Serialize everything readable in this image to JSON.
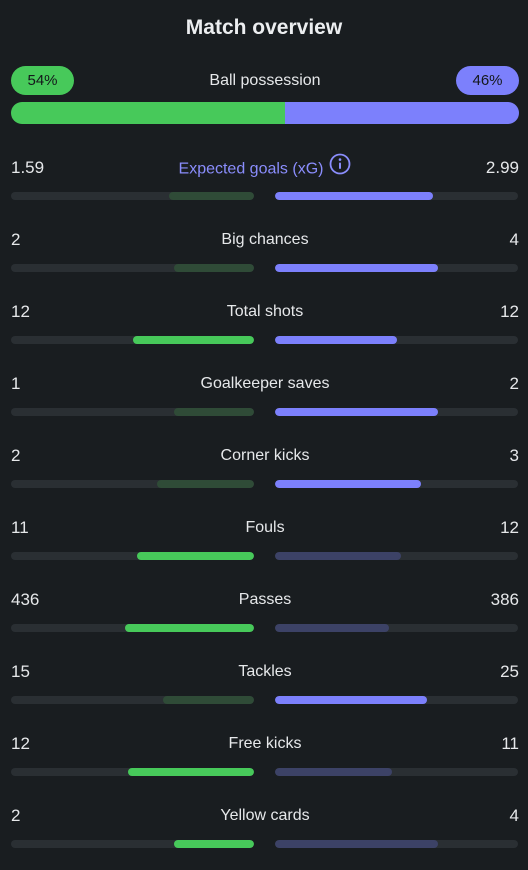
{
  "title": "Match overview",
  "possession": {
    "label": "Ball possession",
    "home_label": "54%",
    "away_label": "46%",
    "home": 54,
    "away": 46
  },
  "colors": {
    "home": "#47c95a",
    "home_dim": "#2f4b37",
    "away": "#7c80fc",
    "away_dim": "#3c4266",
    "track": "#2a2f33"
  },
  "stats": [
    {
      "label": "Expected goals (xG)",
      "home": "1.59",
      "away": "2.99",
      "home_frac": 0.35,
      "away_frac": 0.65,
      "winner": "away",
      "info": true
    },
    {
      "label": "Big chances",
      "home": "2",
      "away": "4",
      "home_frac": 0.33,
      "away_frac": 0.67,
      "winner": "away"
    },
    {
      "label": "Total shots",
      "home": "12",
      "away": "12",
      "home_frac": 0.5,
      "away_frac": 0.5,
      "winner": "both"
    },
    {
      "label": "Goalkeeper saves",
      "home": "1",
      "away": "2",
      "home_frac": 0.33,
      "away_frac": 0.67,
      "winner": "away"
    },
    {
      "label": "Corner kicks",
      "home": "2",
      "away": "3",
      "home_frac": 0.4,
      "away_frac": 0.6,
      "winner": "away"
    },
    {
      "label": "Fouls",
      "home": "11",
      "away": "12",
      "home_frac": 0.48,
      "away_frac": 0.52,
      "winner": "home"
    },
    {
      "label": "Passes",
      "home": "436",
      "away": "386",
      "home_frac": 0.53,
      "away_frac": 0.47,
      "winner": "home"
    },
    {
      "label": "Tackles",
      "home": "15",
      "away": "25",
      "home_frac": 0.375,
      "away_frac": 0.625,
      "winner": "away"
    },
    {
      "label": "Free kicks",
      "home": "12",
      "away": "11",
      "home_frac": 0.52,
      "away_frac": 0.48,
      "winner": "home"
    },
    {
      "label": "Yellow cards",
      "home": "2",
      "away": "4",
      "home_frac": 0.33,
      "away_frac": 0.67,
      "winner": "home"
    }
  ]
}
